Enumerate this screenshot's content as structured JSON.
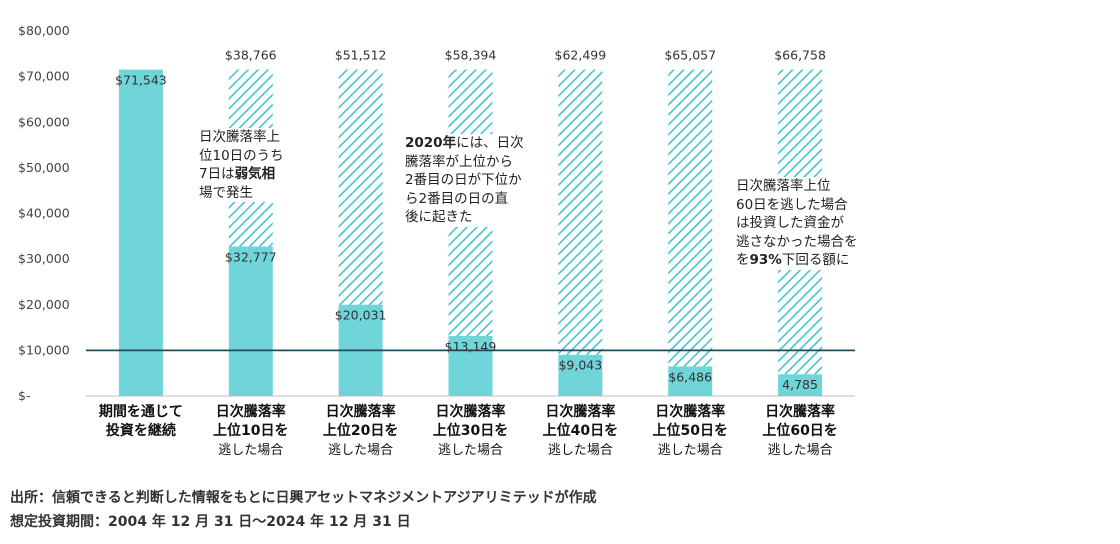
{
  "chart_data": {
    "type": "bar",
    "categories": [
      [
        "期間を通じて",
        "投資を継続"
      ],
      [
        "日次騰落率",
        "上位10日を",
        "逃した場合"
      ],
      [
        "日次騰落率",
        "上位20日を",
        "逃した場合"
      ],
      [
        "日次騰落率",
        "上位30日を",
        "逃した場合"
      ],
      [
        "日次騰落率",
        "上位40日を",
        "逃した場合"
      ],
      [
        "日次騰落率",
        "上位50日を",
        "逃した場合"
      ],
      [
        "日次騰落率",
        "上位60日を",
        "逃した場合"
      ]
    ],
    "series": [
      {
        "values": [
          71543,
          32777,
          20031,
          13149,
          9043,
          6486,
          4785
        ],
        "value_labels": [
          "$71,543",
          "$32,777",
          "$20,031",
          "$13,149",
          "$9,043",
          "$6,486",
          "4,785"
        ],
        "style": "solid"
      },
      {
        "values": [
          0,
          38766,
          51512,
          58394,
          62499,
          65057,
          66758
        ],
        "value_labels": [
          "",
          "$38,766",
          "$51,512",
          "$58,394",
          "$62,499",
          "$65,057",
          "$66,758"
        ],
        "style": "hatched"
      }
    ],
    "reference_line": 10000,
    "ylim": [
      0,
      80000
    ],
    "y_ticks": [
      0,
      10000,
      20000,
      30000,
      40000,
      50000,
      60000,
      70000,
      80000
    ],
    "y_tick_labels": [
      "$-",
      "$10,000",
      "$20,000",
      "$30,000",
      "$40,000",
      "$50,000",
      "$60,000",
      "$70,000",
      "$80,000"
    ],
    "colors": {
      "bar": "#6fd5d9",
      "hatch": "#45c4cb",
      "line": "#1e4d5f"
    },
    "annotations": [
      {
        "lines": [
          "日次騰落率上",
          "位10日のうち",
          "7日は弱気相",
          "場で発生"
        ]
      },
      {
        "lines": [
          "2020年には、日次",
          "騰落率が上位から",
          "2番目の日が下位か",
          "ら2番目の日の直",
          "後に起きた"
        ]
      },
      {
        "lines": [
          "日次騰落率上位",
          "60日を逃した場合",
          "は投資した資金が",
          "逃さなかった場合を",
          "を93%下回る額に"
        ]
      }
    ]
  },
  "footer": {
    "source": "出所：信頼できると判断した情報をもとに日興アセットマネジメントアジアリミテッドが作成",
    "period": "想定投資期間：2004 年 12 月 31 日～2024 年 12 月 31 日"
  }
}
